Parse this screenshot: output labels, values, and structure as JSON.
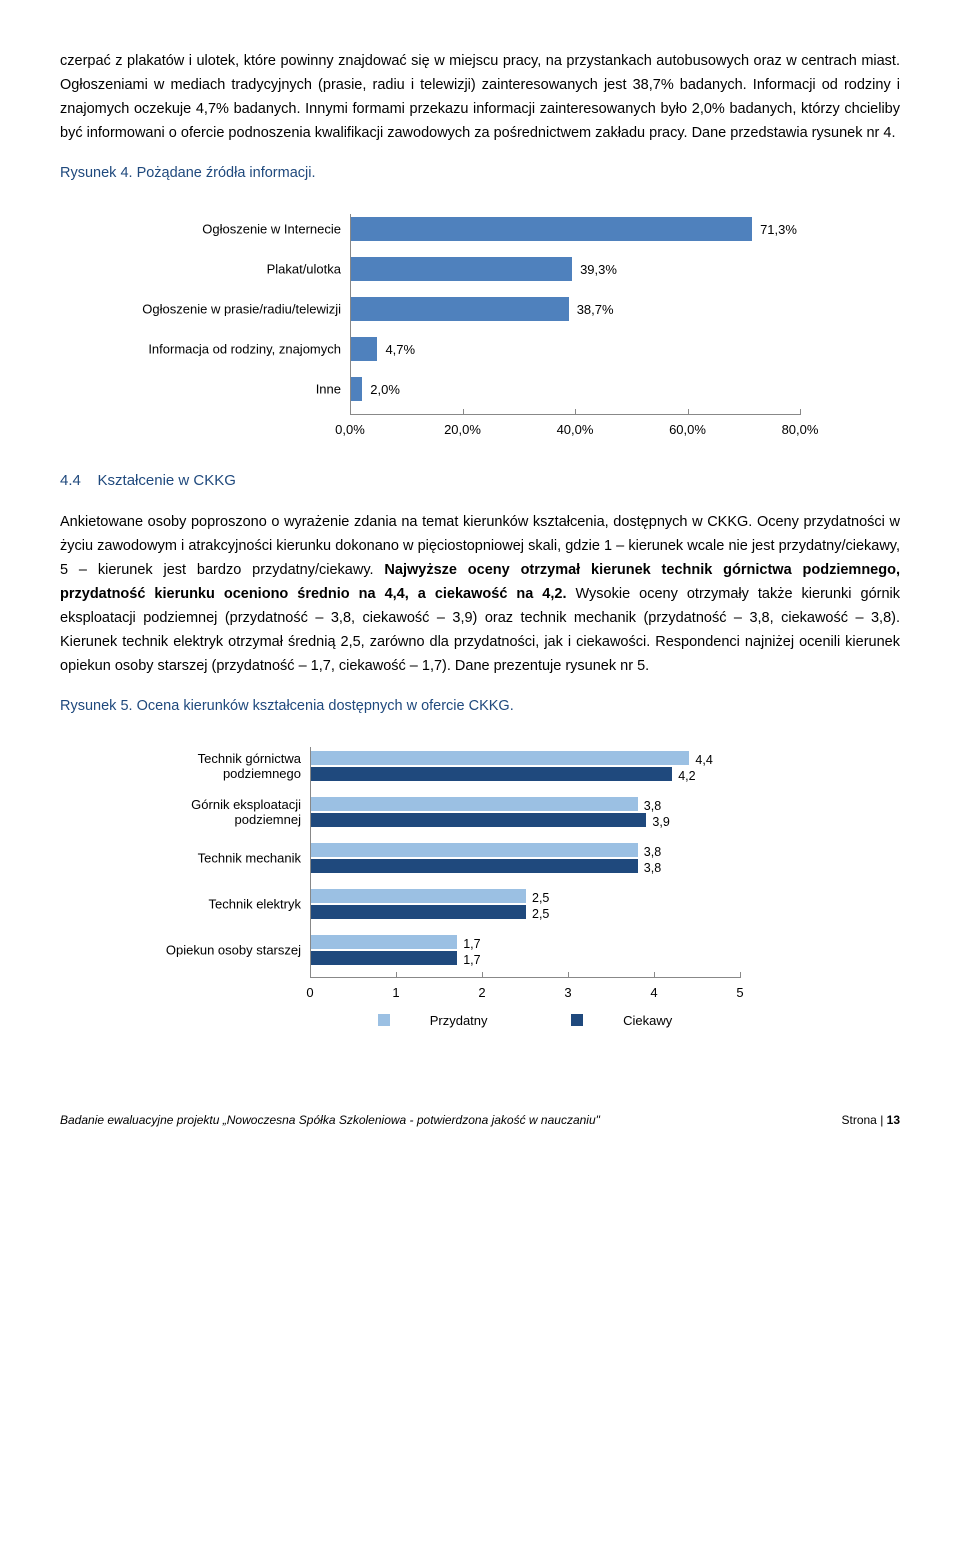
{
  "intro": {
    "p1": "czerpać z plakatów i ulotek, które powinny znajdować się w miejscu pracy, na przystankach autobusowych oraz w centrach miast. Ogłoszeniami w mediach tradycyjnych (prasie, radiu i telewizji) zainteresowanych jest 38,7% badanych. Informacji od rodziny i znajomych oczekuje 4,7% badanych. Innymi formami przekazu informacji zainteresowanych było 2,0% badanych, którzy chcieliby być informowani o ofercie podnoszenia kwalifikacji zawodowych za pośrednictwem zakładu pracy. Dane przedstawia rysunek nr 4."
  },
  "fig4": {
    "title": "Rysunek 4. Pożądane źródła informacji.",
    "bar_color": "#4f81bd",
    "grid_color": "#888888",
    "xmax": 80,
    "xticks": [
      "0,0%",
      "20,0%",
      "40,0%",
      "60,0%",
      "80,0%"
    ],
    "items": [
      {
        "label": "Ogłoszenie w Internecie",
        "value": 71.3,
        "text": "71,3%"
      },
      {
        "label": "Plakat/ulotka",
        "value": 39.3,
        "text": "39,3%"
      },
      {
        "label": "Ogłoszenie w prasie/radiu/telewizji",
        "value": 38.7,
        "text": "38,7%"
      },
      {
        "label": "Informacja od rodziny, znajomych",
        "value": 4.7,
        "text": "4,7%"
      },
      {
        "label": "Inne",
        "value": 2.0,
        "text": "2,0%"
      }
    ]
  },
  "section": {
    "num": "4.4",
    "title": "Kształcenie w CKKG",
    "p1a": "Ankietowane osoby poproszono o wyrażenie zdania na temat kierunków kształcenia, dostępnych w CKKG. Oceny przydatności w życiu zawodowym i atrakcyjności kierunku dokonano w pięciostopniowej skali, gdzie 1 – kierunek wcale nie jest przydatny/ciekawy, 5 – kierunek jest bardzo przydatny/ciekawy. ",
    "bold1": "Najwyższe oceny otrzymał kierunek technik górnictwa podziemnego, przydatność kierunku oceniono średnio na 4,4, a ciekawość na 4,2.",
    "p1b": " Wysokie oceny otrzymały także kierunki górnik eksploatacji podziemnej (przydatność – 3,8, ciekawość – 3,9) oraz technik mechanik (przydatność – 3,8, ciekawość – 3,8). Kierunek technik elektryk otrzymał średnią 2,5, zarówno dla przydatności, jak i ciekawości. Respondenci najniżej ocenili kierunek opiekun osoby starszej (przydatność – 1,7, ciekawość – 1,7). Dane prezentuje rysunek nr 5."
  },
  "fig5": {
    "title": "Rysunek 5. Ocena kierunków kształcenia dostępnych w ofercie CKKG.",
    "color1": "#9bc0e3",
    "color2": "#1f497d",
    "xmax": 5,
    "xticks": [
      "0",
      "1",
      "2",
      "3",
      "4",
      "5"
    ],
    "legend1": "Przydatny",
    "legend2": "Ciekawy",
    "items": [
      {
        "label": "Technik górnictwa\npodziemnego",
        "v1": 4.4,
        "t1": "4,4",
        "v2": 4.2,
        "t2": "4,2"
      },
      {
        "label": "Górnik eksploatacji\npodziemnej",
        "v1": 3.8,
        "t1": "3,8",
        "v2": 3.9,
        "t2": "3,9"
      },
      {
        "label": "Technik mechanik",
        "v1": 3.8,
        "t1": "3,8",
        "v2": 3.8,
        "t2": "3,8"
      },
      {
        "label": "Technik elektryk",
        "v1": 2.5,
        "t1": "2,5",
        "v2": 2.5,
        "t2": "2,5"
      },
      {
        "label": "Opiekun osoby starszej",
        "v1": 1.7,
        "t1": "1,7",
        "v2": 1.7,
        "t2": "1,7"
      }
    ]
  },
  "footer": {
    "left": "Badanie ewaluacyjne projektu „Nowoczesna Spółka Szkoleniowa - potwierdzona jakość w nauczaniu\"",
    "right_label": "Strona | ",
    "right_num": "13"
  }
}
